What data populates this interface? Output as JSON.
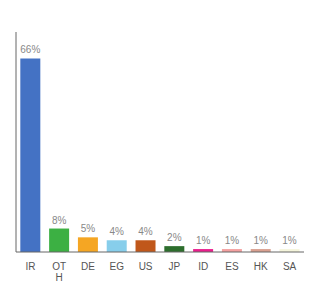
{
  "chart_data": {
    "type": "bar",
    "categories": [
      "IR",
      "OT\nH",
      "DE",
      "EG",
      "US",
      "JP",
      "ID",
      "ES",
      "HK",
      "SA"
    ],
    "values": [
      66,
      8,
      5,
      4,
      4,
      2,
      1,
      1,
      1,
      1
    ],
    "value_labels": [
      "66%",
      "8%",
      "5%",
      "4%",
      "4%",
      "2%",
      "1%",
      "1%",
      "1%",
      "1%"
    ],
    "colors": [
      "#4472c4",
      "#3cb043",
      "#f5a623",
      "#87ceeb",
      "#c0571a",
      "#2d6e2d",
      "#e91e8c",
      "#f4a0a0",
      "#d9a090",
      "#f5f5dc"
    ],
    "ylim": [
      0,
      75
    ],
    "grid": false,
    "tick_labels": "x",
    "data_labels": true
  }
}
